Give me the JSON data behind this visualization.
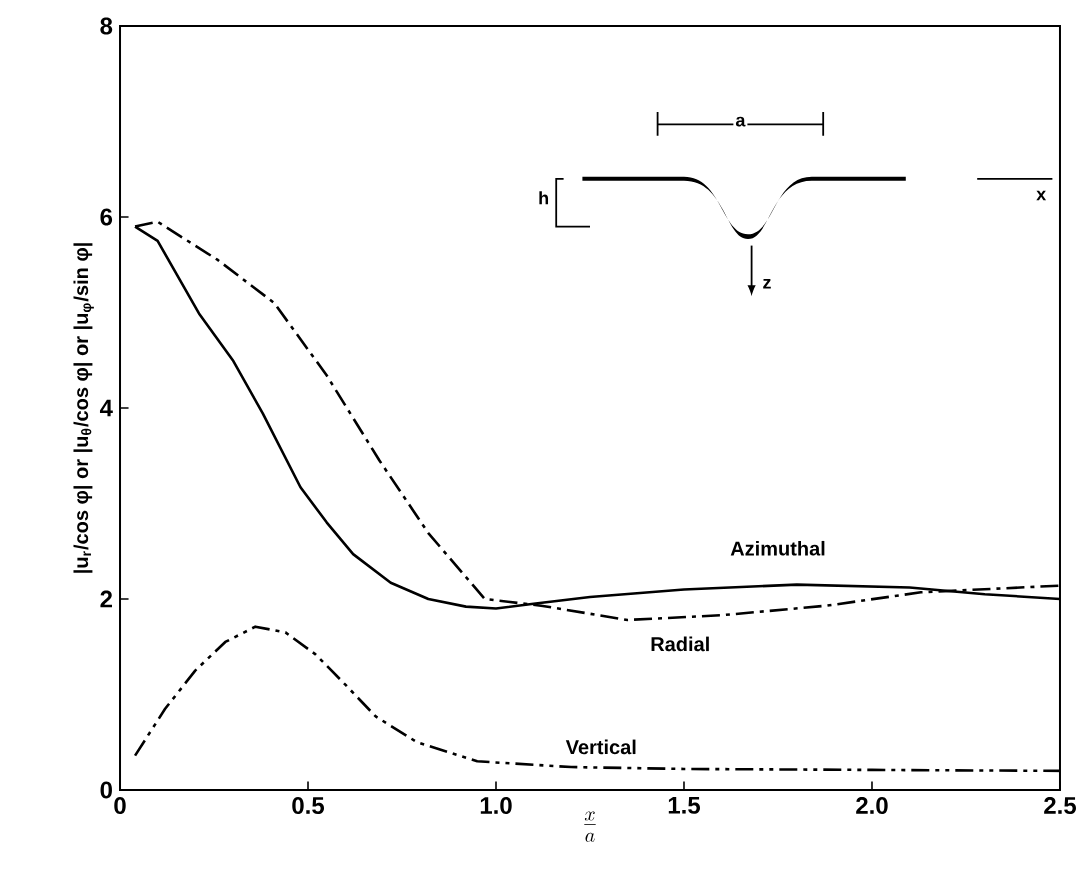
{
  "chart_data": {
    "type": "line",
    "xlabel": "\\frac{x}{a}",
    "ylabel": "|u$_{r}$/cos φ| or |u$_{θ}$/cos φ| or |u$_{φ}$/sin φ|",
    "xlim": [
      0,
      2.5
    ],
    "ylim": [
      0,
      8
    ],
    "xticks": [
      0,
      0.5,
      {
        "value": 1,
        "label": "1.0"
      },
      1.5,
      {
        "value": 2,
        "label": "2.0"
      },
      2.5
    ],
    "yticks": [
      0,
      2,
      4,
      6,
      8
    ],
    "grid": false,
    "legend": false,
    "marker": "none",
    "series": [
      {
        "name": "Azimuthal",
        "color": "#000000",
        "line_style": "solid",
        "x": [
          0.04,
          0.1,
          0.21,
          0.3,
          0.38,
          0.48,
          0.55,
          0.62,
          0.72,
          0.82,
          0.92,
          1.0,
          1.1,
          1.25,
          1.5,
          1.8,
          2.1,
          2.3,
          2.5
        ],
        "values": [
          5.9,
          5.75,
          4.99,
          4.5,
          3.94,
          3.17,
          2.8,
          2.47,
          2.17,
          2.0,
          1.92,
          1.9,
          1.95,
          2.02,
          2.1,
          2.15,
          2.12,
          2.05,
          2.0
        ]
      },
      {
        "name": "Radial",
        "color": "#000000",
        "line_style": "dashdot",
        "x": [
          0.04,
          0.1,
          0.26,
          0.41,
          0.55,
          0.69,
          0.82,
          0.97,
          1.12,
          1.35,
          1.6,
          1.88,
          2.13,
          2.5
        ],
        "values": [
          5.9,
          5.95,
          5.55,
          5.1,
          4.34,
          3.45,
          2.69,
          2.0,
          1.93,
          1.78,
          1.83,
          1.93,
          2.07,
          2.14
        ]
      },
      {
        "name": "Vertical",
        "color": "#000000",
        "line_style": "dashdotdot",
        "x": [
          0.04,
          0.12,
          0.2,
          0.28,
          0.36,
          0.44,
          0.52,
          0.6,
          0.68,
          0.79,
          0.95,
          1.2,
          1.5,
          2.0,
          2.5
        ],
        "values": [
          0.36,
          0.85,
          1.25,
          1.55,
          1.71,
          1.65,
          1.42,
          1.1,
          0.77,
          0.5,
          0.3,
          0.24,
          0.22,
          0.21,
          0.2
        ]
      }
    ],
    "annotations": [
      "a",
      "h",
      "x",
      "z"
    ]
  }
}
